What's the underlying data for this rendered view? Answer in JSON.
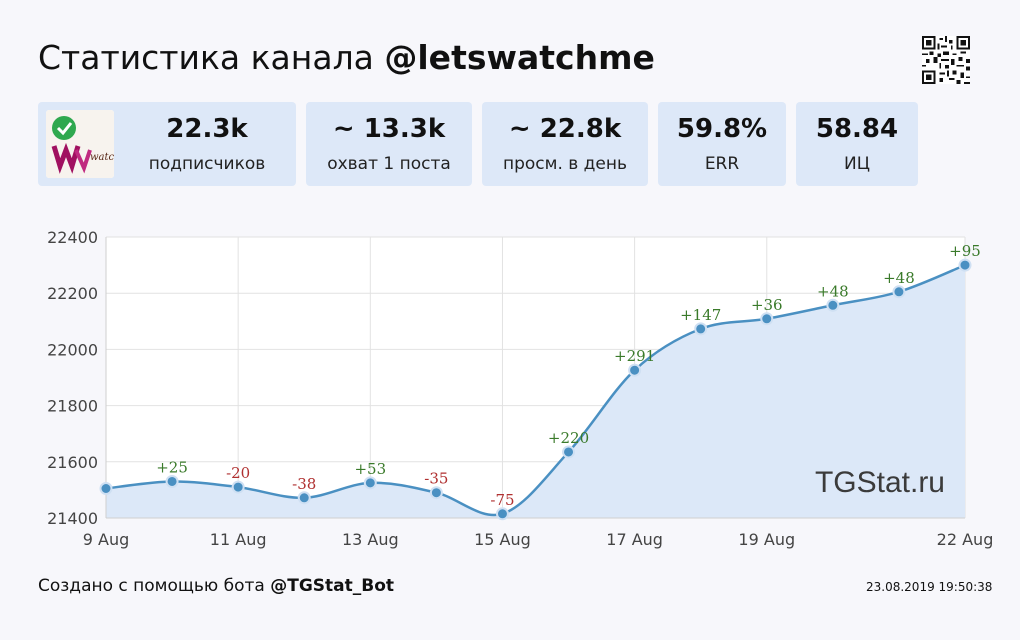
{
  "header": {
    "title_prefix": "Статистика канала ",
    "title_channel": "@letswatchme"
  },
  "stats": [
    {
      "value": "22.3k",
      "label": "подписчиков"
    },
    {
      "value": "~ 13.3k",
      "label": "охват 1 поста"
    },
    {
      "value": "~ 22.8k",
      "label": "просм. в день"
    },
    {
      "value": "59.8%",
      "label": "ERR"
    },
    {
      "value": "58.84",
      "label": "ИЦ"
    }
  ],
  "avatar": {
    "text": "watch"
  },
  "footer": {
    "created_prefix": "Создано с помощью бота ",
    "bot": "@TGStat_Bot",
    "timestamp": "23.08.2019 19:50:38"
  },
  "chart_data": {
    "type": "area",
    "x": [
      "9 Aug",
      "10 Aug",
      "11 Aug",
      "12 Aug",
      "13 Aug",
      "14 Aug",
      "15 Aug",
      "16 Aug",
      "17 Aug",
      "18 Aug",
      "19 Aug",
      "20 Aug",
      "21 Aug",
      "22 Aug"
    ],
    "x_tick_labels": [
      "9 Aug",
      "11 Aug",
      "13 Aug",
      "15 Aug",
      "17 Aug",
      "19 Aug",
      "22 Aug"
    ],
    "values": [
      21505,
      21530,
      21510,
      21472,
      21525,
      21490,
      21415,
      21635,
      21926,
      22073,
      22109,
      22157,
      22205,
      22300
    ],
    "data_labels": [
      "",
      "+25",
      "-20",
      "-38",
      "+53",
      "-35",
      "-75",
      "+220",
      "+291",
      "+147",
      "+36",
      "+48",
      "+48",
      "+95"
    ],
    "ylim": [
      21400,
      22400
    ],
    "y_ticks": [
      21400,
      21600,
      21800,
      22000,
      22200,
      22400
    ],
    "grid": true,
    "watermark": "TGStat.ru",
    "colors": {
      "line": "#4a90c2",
      "fill": "#dce8f8",
      "point": "#4a90c2",
      "positive": "#3a7a2a",
      "negative": "#b03030"
    }
  }
}
